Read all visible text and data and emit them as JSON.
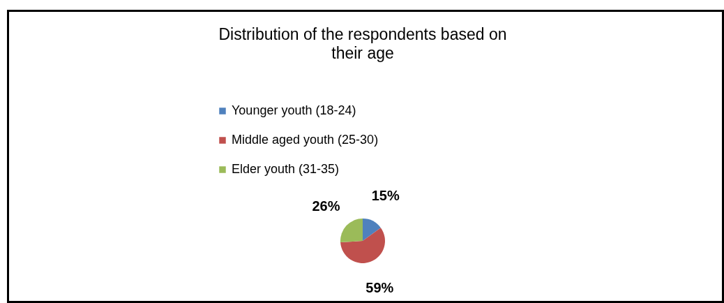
{
  "chart_data": {
    "type": "pie",
    "title": "Distribution of the respondents based on their age",
    "categories": [
      "Younger youth (18-24)",
      "Middle aged youth (25-30)",
      "Elder youth (31-35)"
    ],
    "values": [
      15,
      59,
      26
    ],
    "colors": [
      "#4f81bd",
      "#c0504d",
      "#9bbb59"
    ],
    "value_labels": [
      "15%",
      "59%",
      "26%"
    ],
    "legend": "top"
  }
}
